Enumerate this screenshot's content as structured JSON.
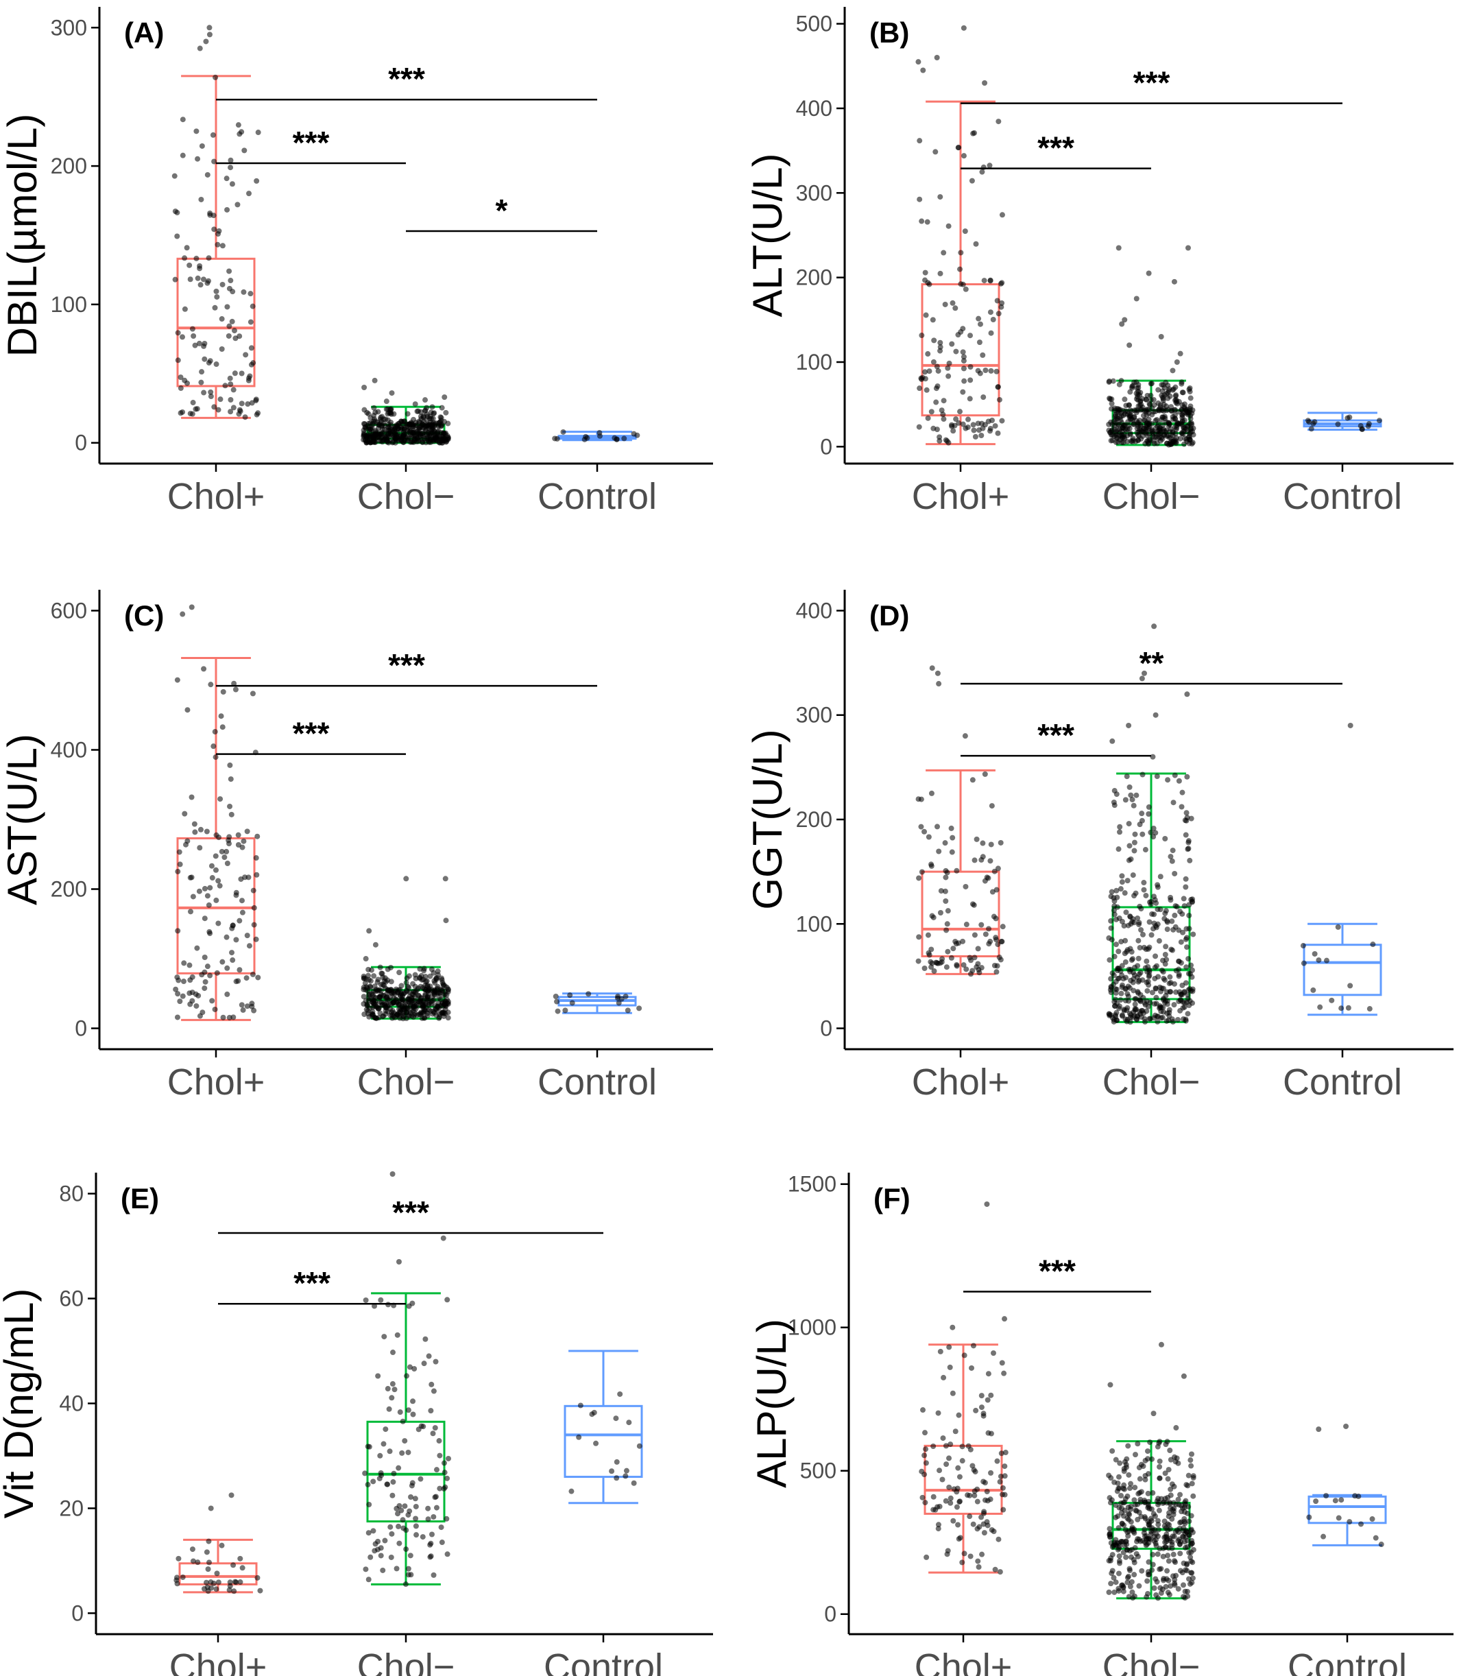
{
  "colors": {
    "Chol+": "#F8766D",
    "Chol−": "#00BA38",
    "Control": "#619CFF",
    "points": "#000000"
  },
  "chart_data": [
    {
      "type": "box",
      "panel_label": "(A)",
      "ylabel": "DBIL(µmol/L)",
      "categories": [
        "Chol+",
        "Chol−",
        "Control"
      ],
      "ylim": [
        -15,
        315
      ],
      "yticks": [
        0,
        100,
        200,
        300
      ],
      "boxes": [
        {
          "group": "Chol+",
          "whisker_low": 18,
          "q1": 41,
          "median": 83,
          "q3": 133,
          "whisker_high": 265,
          "n_points": 130,
          "outliers": [
            285,
            290,
            300,
            295
          ]
        },
        {
          "group": "Chol−",
          "whisker_low": 0,
          "q1": 3,
          "median": 7,
          "q3": 13,
          "whisker_high": 26,
          "n_points": 420,
          "outliers": [
            30,
            33,
            36,
            40,
            45,
            28,
            31
          ]
        },
        {
          "group": "Control",
          "whisker_low": 2,
          "q1": 3,
          "median": 4,
          "q3": 5,
          "whisker_high": 8,
          "n_points": 14,
          "outliers": []
        }
      ],
      "significance": [
        {
          "from": "Chol+",
          "to": "Control",
          "y": 248,
          "label": "***"
        },
        {
          "from": "Chol+",
          "to": "Chol−",
          "y": 202,
          "label": "***"
        },
        {
          "from": "Chol−",
          "to": "Control",
          "y": 153,
          "label": "*"
        }
      ]
    },
    {
      "type": "box",
      "panel_label": "(B)",
      "ylabel": "ALT(U/L)",
      "categories": [
        "Chol+",
        "Chol−",
        "Control"
      ],
      "ylim": [
        -20,
        520
      ],
      "yticks": [
        0,
        100,
        200,
        300,
        400,
        500
      ],
      "boxes": [
        {
          "group": "Chol+",
          "whisker_low": 3,
          "q1": 37,
          "median": 96,
          "q3": 192,
          "whisker_high": 408,
          "n_points": 140,
          "outliers": [
            430,
            445,
            455,
            460,
            495
          ]
        },
        {
          "group": "Chol−",
          "whisker_low": 2,
          "q1": 16,
          "median": 27,
          "q3": 43,
          "whisker_high": 78,
          "n_points": 420,
          "outliers": [
            90,
            100,
            110,
            120,
            130,
            145,
            150,
            175,
            195,
            205,
            235,
            235
          ]
        },
        {
          "group": "Control",
          "whisker_low": 20,
          "q1": 24,
          "median": 27,
          "q3": 31,
          "whisker_high": 40,
          "n_points": 14,
          "outliers": []
        }
      ],
      "significance": [
        {
          "from": "Chol+",
          "to": "Control",
          "y": 406,
          "label": "***"
        },
        {
          "from": "Chol+",
          "to": "Chol−",
          "y": 329,
          "label": "***"
        }
      ]
    },
    {
      "type": "box",
      "panel_label": "(C)",
      "ylabel": "AST(U/L)",
      "categories": [
        "Chol+",
        "Chol−",
        "Control"
      ],
      "ylim": [
        -30,
        630
      ],
      "yticks": [
        0,
        200,
        400,
        600
      ],
      "boxes": [
        {
          "group": "Chol+",
          "whisker_low": 12,
          "q1": 79,
          "median": 173,
          "q3": 273,
          "whisker_high": 532,
          "n_points": 140,
          "outliers": [
            595,
            605
          ]
        },
        {
          "group": "Chol−",
          "whisker_low": 14,
          "q1": 31,
          "median": 41,
          "q3": 55,
          "whisker_high": 88,
          "n_points": 420,
          "outliers": [
            100,
            120,
            140,
            155,
            215,
            215
          ]
        },
        {
          "group": "Control",
          "whisker_low": 22,
          "q1": 33,
          "median": 40,
          "q3": 45,
          "whisker_high": 50,
          "n_points": 14,
          "outliers": []
        }
      ],
      "significance": [
        {
          "from": "Chol+",
          "to": "Control",
          "y": 492,
          "label": "***"
        },
        {
          "from": "Chol+",
          "to": "Chol−",
          "y": 394,
          "label": "***"
        }
      ]
    },
    {
      "type": "box",
      "panel_label": "(D)",
      "ylabel": "GGT(U/L)",
      "categories": [
        "Chol+",
        "Chol−",
        "Control"
      ],
      "ylim": [
        -20,
        420
      ],
      "yticks": [
        0,
        100,
        200,
        300,
        400
      ],
      "boxes": [
        {
          "group": "Chol+",
          "whisker_low": 52,
          "q1": 69,
          "median": 95,
          "q3": 150,
          "whisker_high": 247,
          "n_points": 110,
          "outliers": [
            280,
            330,
            340,
            345
          ]
        },
        {
          "group": "Chol−",
          "whisker_low": 6,
          "q1": 28,
          "median": 56,
          "q3": 116,
          "whisker_high": 244,
          "n_points": 420,
          "outliers": [
            260,
            275,
            290,
            300,
            320,
            335,
            340,
            385
          ]
        },
        {
          "group": "Control",
          "whisker_low": 13,
          "q1": 32,
          "median": 63,
          "q3": 80,
          "whisker_high": 100,
          "n_points": 14,
          "outliers": [
            290
          ]
        }
      ],
      "significance": [
        {
          "from": "Chol+",
          "to": "Control",
          "y": 330,
          "label": "**"
        },
        {
          "from": "Chol+",
          "to": "Chol−",
          "y": 261,
          "label": "***"
        }
      ]
    },
    {
      "type": "box",
      "panel_label": "(E)",
      "ylabel": "Vit D(ng/mL)",
      "categories": [
        "Chol+",
        "Chol−",
        "Control"
      ],
      "ylim": [
        -4,
        84
      ],
      "yticks": [
        0,
        20,
        40,
        60,
        80
      ],
      "boxes": [
        {
          "group": "Chol+",
          "whisker_low": 4,
          "q1": 5.5,
          "median": 7,
          "q3": 9.5,
          "whisker_high": 14,
          "n_points": 35,
          "outliers": [
            20,
            22.5
          ]
        },
        {
          "group": "Chol−",
          "whisker_low": 5.5,
          "q1": 17.5,
          "median": 26.5,
          "q3": 36.5,
          "whisker_high": 61,
          "n_points": 130,
          "outliers": [
            67,
            71.5,
            84
          ]
        },
        {
          "group": "Control",
          "whisker_low": 21,
          "q1": 26,
          "median": 34,
          "q3": 39.5,
          "whisker_high": 50,
          "n_points": 16,
          "outliers": []
        }
      ],
      "significance": [
        {
          "from": "Chol+",
          "to": "Control",
          "y": 72.5,
          "label": "***"
        },
        {
          "from": "Chol+",
          "to": "Chol−",
          "y": 59,
          "label": "***"
        }
      ]
    },
    {
      "type": "box",
      "panel_label": "(F)",
      "ylabel": "ALP(U/L)",
      "categories": [
        "Chol+",
        "Chol−",
        "Control"
      ],
      "ylim": [
        -70,
        1540
      ],
      "yticks": [
        0,
        500,
        1000,
        1500
      ],
      "boxes": [
        {
          "group": "Chol+",
          "whisker_low": 145,
          "q1": 350,
          "median": 432,
          "q3": 587,
          "whisker_high": 940,
          "n_points": 120,
          "outliers": [
            1000,
            1030,
            1430
          ]
        },
        {
          "group": "Chol−",
          "whisker_low": 55,
          "q1": 228,
          "median": 295,
          "q3": 388,
          "whisker_high": 603,
          "n_points": 420,
          "outliers": [
            650,
            700,
            800,
            830,
            940
          ]
        },
        {
          "group": "Control",
          "whisker_low": 240,
          "q1": 318,
          "median": 375,
          "q3": 410,
          "whisker_high": 415,
          "n_points": 14,
          "outliers": [
            645,
            655
          ]
        }
      ],
      "significance": [
        {
          "from": "Chol+",
          "to": "Chol−",
          "y": 1125,
          "label": "***"
        }
      ]
    }
  ]
}
